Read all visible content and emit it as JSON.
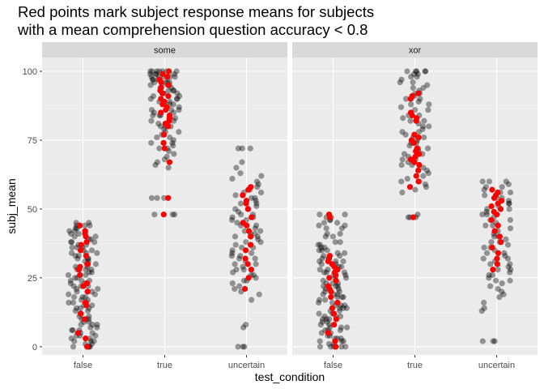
{
  "chart_data": {
    "type": "scatter",
    "title": "Red points mark subject response means for subjects\nwith a mean comprehension question accuracy < 0.8",
    "xlabel": "test_condition",
    "ylabel": "subj_mean",
    "categories": [
      "false",
      "true",
      "uncertain"
    ],
    "y_ticks": [
      0,
      25,
      50,
      75,
      100
    ],
    "ylim": [
      -3,
      105
    ],
    "grid": true,
    "jitter_width": 0.12,
    "facets": [
      {
        "name": "some",
        "points": {
          "false": {
            "black": [
              0,
              0,
              0,
              0,
              0,
              0,
              1,
              1,
              2,
              2,
              3,
              3,
              4,
              4,
              5,
              5,
              6,
              6,
              7,
              7,
              8,
              8,
              9,
              9,
              10,
              10,
              11,
              11,
              12,
              12,
              13,
              13,
              14,
              14,
              15,
              15,
              16,
              16,
              17,
              17,
              18,
              18,
              19,
              19,
              20,
              20,
              21,
              21,
              22,
              22,
              23,
              23,
              24,
              24,
              25,
              25,
              26,
              26,
              27,
              27,
              28,
              28,
              29,
              29,
              30,
              30,
              31,
              31,
              32,
              32,
              33,
              33,
              34,
              34,
              35,
              35,
              36,
              36,
              37,
              37,
              38,
              38,
              39,
              39,
              40,
              40,
              41,
              41,
              42,
              42,
              43,
              43,
              44,
              44,
              45,
              45,
              2,
              6,
              10,
              14,
              18,
              22,
              26,
              30,
              34,
              38,
              42,
              4,
              8,
              12,
              16,
              20,
              24,
              28,
              32,
              36,
              40,
              44
            ],
            "red": [
              0,
              3,
              5,
              10,
              12,
              15,
              16,
              20,
              22,
              23,
              26,
              28,
              29,
              30,
              33,
              35,
              37,
              38,
              40,
              41,
              42,
              44
            ]
          },
          "true": {
            "black": [
              48,
              48,
              48,
              54,
              54,
              54,
              65,
              66,
              67,
              68,
              69,
              70,
              71,
              72,
              72,
              73,
              74,
              75,
              76,
              76,
              77,
              78,
              79,
              80,
              80,
              81,
              82,
              83,
              84,
              84,
              85,
              86,
              86,
              87,
              88,
              88,
              89,
              90,
              90,
              91,
              91,
              92,
              92,
              93,
              93,
              94,
              94,
              95,
              95,
              95,
              96,
              96,
              96,
              97,
              97,
              97,
              98,
              98,
              98,
              98,
              99,
              99,
              99,
              99,
              100,
              100,
              100,
              100,
              100,
              100,
              78,
              82,
              86,
              90,
              94,
              98,
              84,
              88,
              92,
              96,
              100,
              74,
              80,
              85,
              89,
              93
            ],
            "red": [
              48,
              54,
              67,
              72,
              74,
              77,
              80,
              81,
              82,
              83,
              84,
              85,
              86,
              87,
              88,
              89,
              90,
              91,
              92,
              93,
              94,
              95,
              96,
              97,
              98,
              99,
              100
            ]
          },
          "uncertain": {
            "black": [
              0,
              0,
              0,
              7,
              8,
              17,
              19,
              20,
              21,
              22,
              23,
              24,
              25,
              26,
              27,
              28,
              29,
              30,
              31,
              32,
              33,
              34,
              35,
              36,
              37,
              38,
              39,
              40,
              41,
              42,
              43,
              44,
              45,
              46,
              47,
              48,
              49,
              50,
              51,
              52,
              53,
              54,
              55,
              56,
              57,
              58,
              59,
              60,
              61,
              62,
              63,
              65,
              67,
              72,
              72,
              72,
              24,
              28,
              32,
              36,
              40,
              44,
              48,
              52,
              56,
              30,
              34,
              38,
              42,
              46,
              50,
              54,
              26,
              33,
              41,
              47
            ],
            "red": [
              21,
              25,
              28,
              30,
              32,
              35,
              37,
              40,
              42,
              44,
              45,
              47,
              50,
              52,
              53,
              55,
              57,
              58
            ]
          }
        }
      },
      {
        "name": "xor",
        "points": {
          "false": {
            "black": [
              0,
              0,
              0,
              0,
              0,
              0,
              1,
              1,
              2,
              2,
              3,
              3,
              4,
              4,
              5,
              5,
              6,
              6,
              7,
              7,
              8,
              8,
              9,
              9,
              10,
              10,
              11,
              11,
              12,
              12,
              13,
              13,
              14,
              14,
              15,
              15,
              16,
              16,
              17,
              17,
              18,
              18,
              19,
              19,
              20,
              20,
              21,
              21,
              22,
              22,
              23,
              23,
              24,
              24,
              25,
              25,
              26,
              26,
              27,
              27,
              28,
              28,
              29,
              29,
              30,
              30,
              31,
              31,
              32,
              32,
              33,
              33,
              34,
              34,
              35,
              35,
              36,
              36,
              37,
              37,
              38,
              38,
              40,
              40,
              41,
              41,
              43,
              43,
              44,
              44,
              45,
              45,
              46,
              46,
              47,
              47,
              48,
              48,
              3,
              7,
              11,
              15,
              19,
              23,
              27,
              31,
              35,
              2,
              6,
              10,
              14,
              18,
              22
            ],
            "red": [
              0,
              2,
              5,
              8,
              10,
              12,
              14,
              16,
              18,
              20,
              21,
              22,
              24,
              25,
              26,
              27,
              28,
              29,
              30,
              31,
              32,
              33,
              47,
              48
            ]
          },
          "true": {
            "black": [
              47,
              47,
              47,
              48,
              56,
              57,
              58,
              59,
              60,
              60,
              61,
              62,
              63,
              64,
              65,
              66,
              67,
              68,
              69,
              70,
              71,
              72,
              73,
              74,
              75,
              76,
              77,
              78,
              79,
              80,
              81,
              82,
              83,
              84,
              85,
              86,
              87,
              88,
              89,
              90,
              91,
              92,
              93,
              94,
              95,
              96,
              97,
              98,
              99,
              99,
              100,
              100,
              100,
              100,
              100,
              66,
              70,
              74,
              78,
              82,
              86,
              90,
              94,
              98,
              68,
              72,
              76,
              80,
              84,
              88,
              92,
              96
            ],
            "red": [
              47,
              58,
              60,
              62,
              64,
              66,
              67,
              68,
              69,
              70,
              71,
              72,
              74,
              75,
              76,
              77,
              82,
              83,
              84,
              85,
              90,
              91,
              92
            ]
          },
          "uncertain": {
            "black": [
              2,
              2,
              2,
              13,
              14,
              16,
              18,
              19,
              20,
              21,
              22,
              23,
              24,
              25,
              26,
              27,
              28,
              29,
              30,
              31,
              32,
              33,
              34,
              35,
              36,
              37,
              38,
              39,
              40,
              41,
              42,
              43,
              44,
              45,
              46,
              47,
              48,
              49,
              50,
              51,
              52,
              53,
              54,
              55,
              56,
              57,
              58,
              59,
              60,
              60,
              60,
              24,
              28,
              32,
              36,
              40,
              44,
              48,
              52,
              56,
              26,
              30,
              34,
              38,
              42,
              46,
              50,
              54,
              58
            ],
            "red": [
              28,
              30,
              32,
              34,
              36,
              38,
              40,
              42,
              44,
              46,
              48,
              49,
              50,
              51,
              52,
              53,
              54,
              55,
              56,
              57
            ]
          }
        }
      }
    ],
    "colors": {
      "panel_bg": "#ebebeb",
      "strip_bg": "#d9d9d9",
      "grid_major": "#ffffff",
      "black_point": "#000000",
      "red_point": "#ff0000"
    }
  }
}
